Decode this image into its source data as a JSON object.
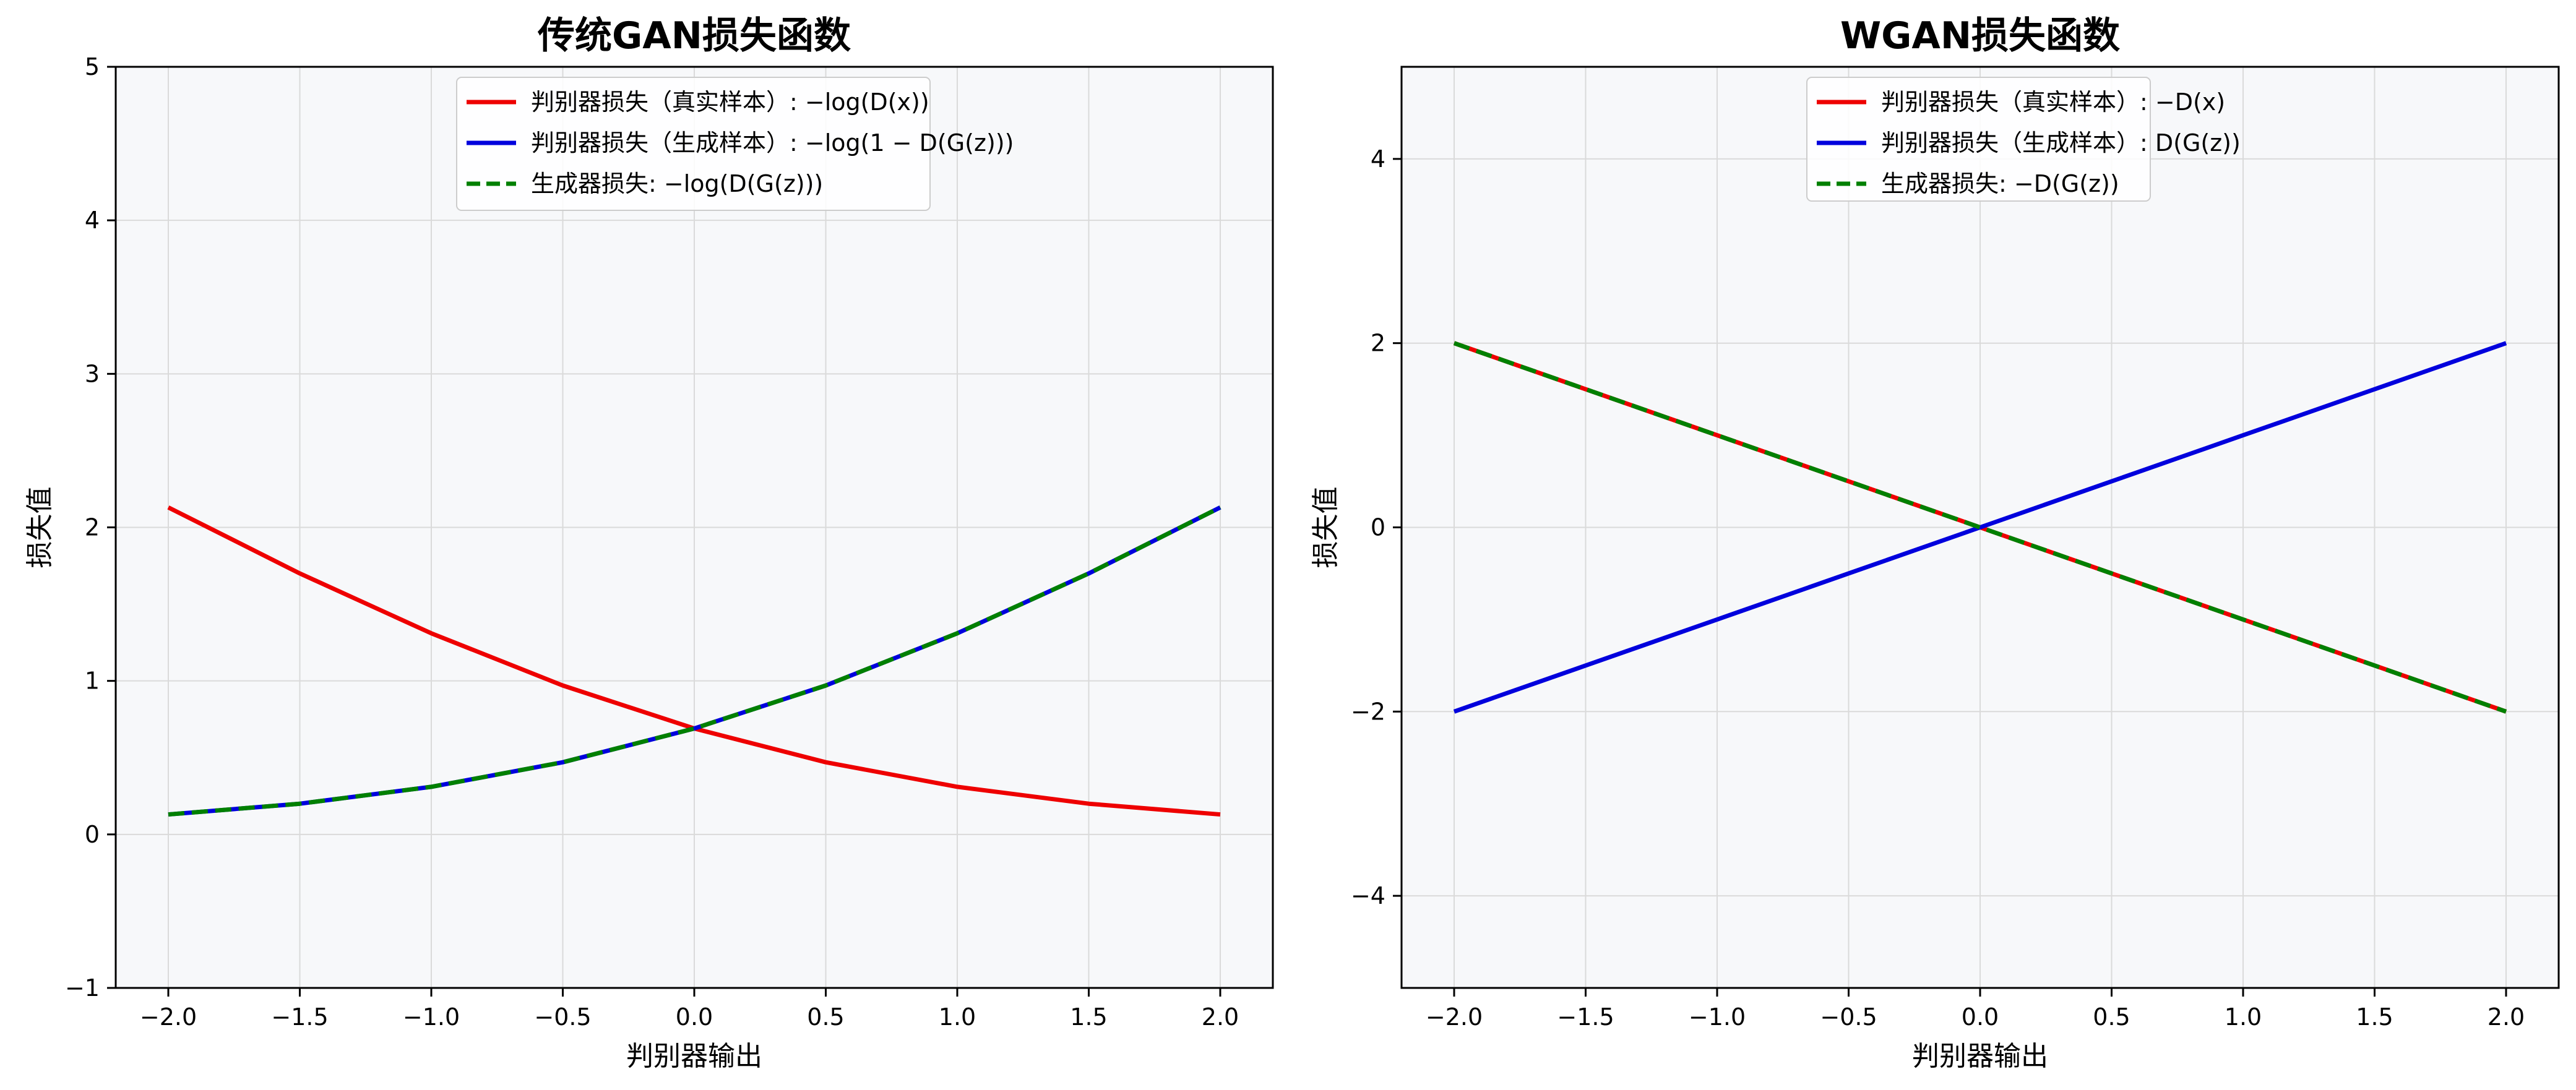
{
  "chart_data": [
    {
      "type": "line",
      "title": "传统GAN损失函数",
      "xlabel": "判别器输出",
      "ylabel": "损失值",
      "xlim": [
        -2.2,
        2.2
      ],
      "ylim": [
        -1,
        5
      ],
      "xticks": [
        "−2.0",
        "−1.5",
        "−1.0",
        "−0.5",
        "0.0",
        "0.5",
        "1.0",
        "1.5",
        "2.0"
      ],
      "xtick_values": [
        -2.0,
        -1.5,
        -1.0,
        -0.5,
        0.0,
        0.5,
        1.0,
        1.5,
        2.0
      ],
      "yticks": [
        "−1",
        "0",
        "1",
        "2",
        "3",
        "4",
        "5"
      ],
      "ytick_values": [
        -1,
        0,
        1,
        2,
        3,
        4,
        5
      ],
      "grid": true,
      "legend_position": "top-center",
      "x": [
        -2.0,
        -1.5,
        -1.0,
        -0.5,
        0.0,
        0.5,
        1.0,
        1.5,
        2.0
      ],
      "series": [
        {
          "name": "判别器损失（真实样本）: −log(D(x))",
          "color": "#ee0000",
          "dash": "solid",
          "values": [
            2.13,
            1.7,
            1.31,
            0.97,
            0.69,
            0.47,
            0.31,
            0.2,
            0.13
          ]
        },
        {
          "name": "判别器损失（生成样本）: −log(1 − D(G(z)))",
          "color": "#0000dd",
          "dash": "solid",
          "values": [
            0.13,
            0.2,
            0.31,
            0.47,
            0.69,
            0.97,
            1.31,
            1.7,
            2.13
          ]
        },
        {
          "name": "生成器损失: −log(D(G(z)))",
          "color": "#008000",
          "dash": "dashed",
          "values": [
            0.13,
            0.2,
            0.31,
            0.47,
            0.69,
            0.97,
            1.31,
            1.7,
            2.13
          ]
        }
      ]
    },
    {
      "type": "line",
      "title": "WGAN损失函数",
      "xlabel": "判别器输出",
      "ylabel": "损失值",
      "xlim": [
        -2.2,
        2.2
      ],
      "ylim": [
        -5,
        5
      ],
      "xticks": [
        "−2.0",
        "−1.5",
        "−1.0",
        "−0.5",
        "0.0",
        "0.5",
        "1.0",
        "1.5",
        "2.0"
      ],
      "xtick_values": [
        -2.0,
        -1.5,
        -1.0,
        -0.5,
        0.0,
        0.5,
        1.0,
        1.5,
        2.0
      ],
      "yticks": [
        "−4",
        "−2",
        "0",
        "2",
        "4"
      ],
      "ytick_values": [
        -4,
        -2,
        0,
        2,
        4
      ],
      "grid": true,
      "legend_position": "top-center",
      "x": [
        -2.0,
        -1.5,
        -1.0,
        -0.5,
        0.0,
        0.5,
        1.0,
        1.5,
        2.0
      ],
      "series": [
        {
          "name": "判别器损失（真实样本）: −D(x)",
          "color": "#ee0000",
          "dash": "solid",
          "values": [
            2.0,
            1.5,
            1.0,
            0.5,
            0.0,
            -0.5,
            -1.0,
            -1.5,
            -2.0
          ]
        },
        {
          "name": "判别器损失（生成样本）: D(G(z))",
          "color": "#0000dd",
          "dash": "solid",
          "values": [
            -2.0,
            -1.5,
            -1.0,
            -0.5,
            0.0,
            0.5,
            1.0,
            1.5,
            2.0
          ]
        },
        {
          "name": "生成器损失: −D(G(z))",
          "color": "#008000",
          "dash": "dashed",
          "values": [
            2.0,
            1.5,
            1.0,
            0.5,
            0.0,
            -0.5,
            -1.0,
            -1.5,
            -2.0
          ]
        }
      ]
    }
  ]
}
